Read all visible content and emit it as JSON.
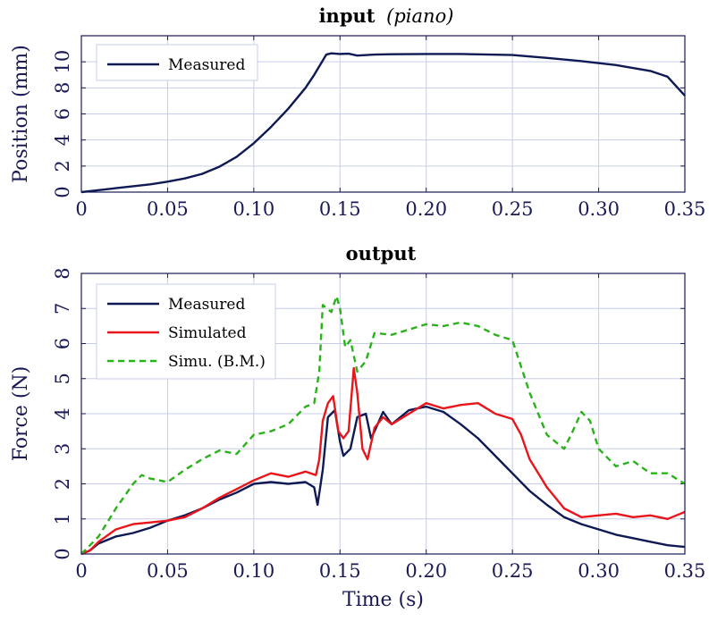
{
  "chart_data": [
    {
      "type": "line",
      "title_bold": "input",
      "title_italic": "piano",
      "title_italic_wrapped": "(piano)",
      "xlabel": "",
      "ylabel": "Position (mm)",
      "xlim": [
        0,
        0.35
      ],
      "ylim": [
        0,
        12
      ],
      "x_ticks": [
        "0",
        "0.05",
        "0.10",
        "0.15",
        "0.20",
        "0.25",
        "0.30",
        "0.35"
      ],
      "y_ticks": [
        "0",
        "2",
        "4",
        "6",
        "8",
        "10"
      ],
      "grid": true,
      "legend_position": "top-left",
      "series": [
        {
          "name": "Measured",
          "color": "#0f1a55",
          "style": "solid",
          "points": [
            [
              0,
              0
            ],
            [
              0.01,
              0.15
            ],
            [
              0.02,
              0.3
            ],
            [
              0.03,
              0.45
            ],
            [
              0.04,
              0.6
            ],
            [
              0.05,
              0.8
            ],
            [
              0.06,
              1.05
            ],
            [
              0.07,
              1.4
            ],
            [
              0.08,
              1.95
            ],
            [
              0.09,
              2.7
            ],
            [
              0.1,
              3.75
            ],
            [
              0.11,
              5.0
            ],
            [
              0.12,
              6.4
            ],
            [
              0.13,
              8.0
            ],
            [
              0.135,
              9.0
            ],
            [
              0.14,
              10.1
            ],
            [
              0.142,
              10.55
            ],
            [
              0.145,
              10.65
            ],
            [
              0.15,
              10.6
            ],
            [
              0.155,
              10.62
            ],
            [
              0.16,
              10.48
            ],
            [
              0.17,
              10.55
            ],
            [
              0.18,
              10.58
            ],
            [
              0.2,
              10.6
            ],
            [
              0.22,
              10.6
            ],
            [
              0.25,
              10.52
            ],
            [
              0.27,
              10.3
            ],
            [
              0.29,
              10.05
            ],
            [
              0.31,
              9.75
            ],
            [
              0.33,
              9.3
            ],
            [
              0.34,
              8.85
            ],
            [
              0.35,
              7.4
            ]
          ]
        }
      ]
    },
    {
      "type": "line",
      "title": "output",
      "xlabel": "Time (s)",
      "ylabel": "Force (N)",
      "xlim": [
        0,
        0.35
      ],
      "ylim": [
        0,
        8
      ],
      "x_ticks": [
        "0",
        "0.05",
        "0.10",
        "0.15",
        "0.20",
        "0.25",
        "0.30",
        "0.35"
      ],
      "y_ticks": [
        "0",
        "1",
        "2",
        "3",
        "4",
        "5",
        "6",
        "7",
        "8"
      ],
      "grid": true,
      "legend_position": "top-left",
      "series": [
        {
          "name": "Measured",
          "color": "#0f1a55",
          "style": "solid",
          "points": [
            [
              0,
              0
            ],
            [
              0.005,
              0.1
            ],
            [
              0.01,
              0.3
            ],
            [
              0.02,
              0.5
            ],
            [
              0.03,
              0.6
            ],
            [
              0.04,
              0.75
            ],
            [
              0.05,
              0.95
            ],
            [
              0.06,
              1.1
            ],
            [
              0.07,
              1.3
            ],
            [
              0.08,
              1.55
            ],
            [
              0.09,
              1.75
            ],
            [
              0.1,
              2.0
            ],
            [
              0.11,
              2.05
            ],
            [
              0.12,
              2.0
            ],
            [
              0.13,
              2.05
            ],
            [
              0.135,
              1.9
            ],
            [
              0.137,
              1.4
            ],
            [
              0.14,
              2.4
            ],
            [
              0.143,
              3.9
            ],
            [
              0.147,
              4.1
            ],
            [
              0.15,
              3.2
            ],
            [
              0.152,
              2.8
            ],
            [
              0.156,
              3.0
            ],
            [
              0.16,
              3.9
            ],
            [
              0.165,
              4.0
            ],
            [
              0.168,
              3.3
            ],
            [
              0.17,
              3.5
            ],
            [
              0.175,
              4.05
            ],
            [
              0.18,
              3.7
            ],
            [
              0.19,
              4.1
            ],
            [
              0.2,
              4.2
            ],
            [
              0.21,
              4.05
            ],
            [
              0.22,
              3.7
            ],
            [
              0.23,
              3.3
            ],
            [
              0.24,
              2.8
            ],
            [
              0.25,
              2.3
            ],
            [
              0.26,
              1.8
            ],
            [
              0.27,
              1.4
            ],
            [
              0.28,
              1.05
            ],
            [
              0.29,
              0.85
            ],
            [
              0.3,
              0.7
            ],
            [
              0.31,
              0.55
            ],
            [
              0.32,
              0.45
            ],
            [
              0.33,
              0.35
            ],
            [
              0.34,
              0.25
            ],
            [
              0.35,
              0.2
            ]
          ]
        },
        {
          "name": "Simulated",
          "color": "#e8161a",
          "style": "solid",
          "points": [
            [
              0,
              0
            ],
            [
              0.005,
              0.1
            ],
            [
              0.01,
              0.35
            ],
            [
              0.02,
              0.7
            ],
            [
              0.03,
              0.85
            ],
            [
              0.04,
              0.9
            ],
            [
              0.05,
              0.95
            ],
            [
              0.06,
              1.05
            ],
            [
              0.07,
              1.3
            ],
            [
              0.08,
              1.6
            ],
            [
              0.09,
              1.85
            ],
            [
              0.1,
              2.1
            ],
            [
              0.11,
              2.3
            ],
            [
              0.12,
              2.2
            ],
            [
              0.13,
              2.35
            ],
            [
              0.136,
              2.25
            ],
            [
              0.138,
              2.7
            ],
            [
              0.14,
              3.8
            ],
            [
              0.143,
              4.3
            ],
            [
              0.146,
              4.5
            ],
            [
              0.149,
              3.5
            ],
            [
              0.152,
              3.3
            ],
            [
              0.155,
              3.5
            ],
            [
              0.158,
              5.3
            ],
            [
              0.16,
              4.6
            ],
            [
              0.163,
              3.0
            ],
            [
              0.166,
              2.7
            ],
            [
              0.17,
              3.6
            ],
            [
              0.175,
              3.9
            ],
            [
              0.18,
              3.7
            ],
            [
              0.19,
              4.0
            ],
            [
              0.2,
              4.3
            ],
            [
              0.21,
              4.15
            ],
            [
              0.22,
              4.25
            ],
            [
              0.23,
              4.3
            ],
            [
              0.24,
              4.0
            ],
            [
              0.25,
              3.85
            ],
            [
              0.255,
              3.4
            ],
            [
              0.26,
              2.7
            ],
            [
              0.27,
              1.9
            ],
            [
              0.28,
              1.3
            ],
            [
              0.29,
              1.05
            ],
            [
              0.3,
              1.1
            ],
            [
              0.31,
              1.15
            ],
            [
              0.32,
              1.05
            ],
            [
              0.33,
              1.1
            ],
            [
              0.34,
              1.0
            ],
            [
              0.35,
              1.2
            ]
          ]
        },
        {
          "name": "Simu. (B.M.)",
          "color": "#2ab21a",
          "style": "dashed",
          "points": [
            [
              0,
              0
            ],
            [
              0.01,
              0.5
            ],
            [
              0.02,
              1.3
            ],
            [
              0.03,
              2.0
            ],
            [
              0.035,
              2.25
            ],
            [
              0.04,
              2.15
            ],
            [
              0.05,
              2.05
            ],
            [
              0.06,
              2.4
            ],
            [
              0.07,
              2.7
            ],
            [
              0.08,
              2.95
            ],
            [
              0.09,
              2.85
            ],
            [
              0.1,
              3.4
            ],
            [
              0.11,
              3.5
            ],
            [
              0.12,
              3.7
            ],
            [
              0.13,
              4.2
            ],
            [
              0.135,
              4.3
            ],
            [
              0.138,
              5.2
            ],
            [
              0.14,
              7.1
            ],
            [
              0.145,
              6.9
            ],
            [
              0.148,
              7.35
            ],
            [
              0.15,
              7.0
            ],
            [
              0.153,
              5.9
            ],
            [
              0.156,
              6.1
            ],
            [
              0.16,
              5.2
            ],
            [
              0.165,
              5.5
            ],
            [
              0.17,
              6.3
            ],
            [
              0.18,
              6.25
            ],
            [
              0.19,
              6.4
            ],
            [
              0.2,
              6.55
            ],
            [
              0.21,
              6.5
            ],
            [
              0.22,
              6.6
            ],
            [
              0.23,
              6.5
            ],
            [
              0.24,
              6.25
            ],
            [
              0.25,
              6.1
            ],
            [
              0.26,
              4.6
            ],
            [
              0.27,
              3.4
            ],
            [
              0.28,
              3.0
            ],
            [
              0.285,
              3.5
            ],
            [
              0.29,
              4.05
            ],
            [
              0.295,
              3.8
            ],
            [
              0.3,
              3.0
            ],
            [
              0.31,
              2.5
            ],
            [
              0.32,
              2.65
            ],
            [
              0.33,
              2.3
            ],
            [
              0.34,
              2.3
            ],
            [
              0.35,
              2.0
            ]
          ]
        }
      ]
    }
  ]
}
